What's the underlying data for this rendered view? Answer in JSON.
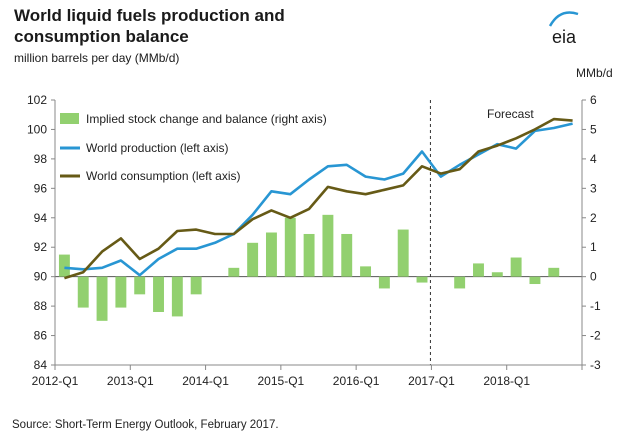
{
  "chart_data": {
    "type": "bar+line",
    "title_lines": [
      "World liquid fuels production and",
      "consumption balance"
    ],
    "subtitle": "million barrels per day (MMb/d)",
    "right_axis_label": "MMb/d",
    "source": "Source: Short-Term Energy Outlook, February 2017.",
    "logo_text": "eia",
    "forecast_label": "Forecast",
    "forecast_start_quarter": "2017-Q1",
    "left_axis": {
      "min": 84,
      "max": 102,
      "step": 2,
      "ticks": [
        "102",
        "100",
        "98",
        "96",
        "94",
        "92",
        "90",
        "88",
        "86",
        "84"
      ]
    },
    "right_axis": {
      "min": -3,
      "max": 6,
      "step": 1,
      "ticks": [
        "6",
        "5",
        "4",
        "3",
        "2",
        "1",
        "0",
        "-1",
        "-2",
        "-3"
      ]
    },
    "x_tick_labels": [
      "2012-Q1",
      "2013-Q1",
      "2014-Q1",
      "2015-Q1",
      "2016-Q1",
      "2017-Q1",
      "2018-Q1"
    ],
    "quarters": [
      "2012-Q1",
      "2012-Q2",
      "2012-Q3",
      "2012-Q4",
      "2013-Q1",
      "2013-Q2",
      "2013-Q3",
      "2013-Q4",
      "2014-Q1",
      "2014-Q2",
      "2014-Q3",
      "2014-Q4",
      "2015-Q1",
      "2015-Q2",
      "2015-Q3",
      "2015-Q4",
      "2016-Q1",
      "2016-Q2",
      "2016-Q3",
      "2016-Q4",
      "2017-Q1",
      "2017-Q2",
      "2017-Q3",
      "2017-Q4",
      "2018-Q1",
      "2018-Q2",
      "2018-Q3",
      "2018-Q4"
    ],
    "legend": {
      "bars": "Implied stock change and balance (right axis)",
      "production": "World production (left axis)",
      "consumption": "World consumption (left axis)"
    },
    "series": [
      {
        "name": "Implied stock change and balance (right axis)",
        "kind": "bar",
        "axis": "right",
        "color": "#92d06f",
        "values": [
          0.75,
          -1.05,
          -1.5,
          -1.05,
          -0.6,
          -1.2,
          -1.35,
          -0.6,
          0.0,
          0.3,
          1.15,
          1.5,
          2.0,
          1.45,
          2.1,
          1.45,
          0.35,
          -0.4,
          1.6,
          -0.2,
          0.0,
          -0.4,
          0.45,
          0.15,
          0.65,
          -0.25,
          0.3,
          0.0
        ]
      },
      {
        "name": "World production (left axis)",
        "kind": "line",
        "axis": "left",
        "color": "#2896d3",
        "values": [
          90.6,
          90.5,
          90.6,
          91.1,
          90.1,
          91.2,
          91.9,
          91.9,
          92.3,
          92.9,
          94.2,
          95.8,
          95.6,
          96.6,
          97.5,
          97.6,
          96.8,
          96.6,
          97.0,
          98.5,
          96.8,
          97.6,
          98.3,
          99.0,
          98.7,
          99.9,
          100.1,
          100.4
        ]
      },
      {
        "name": "World consumption (left axis)",
        "kind": "line",
        "axis": "left",
        "color": "#665a16",
        "values": [
          89.9,
          90.3,
          91.7,
          92.6,
          91.2,
          91.9,
          93.1,
          93.2,
          92.9,
          92.9,
          93.9,
          94.5,
          94.0,
          94.6,
          96.1,
          95.8,
          95.6,
          95.9,
          96.2,
          97.5,
          97.0,
          97.3,
          98.5,
          98.9,
          99.4,
          100.0,
          100.7,
          100.6
        ]
      }
    ]
  }
}
